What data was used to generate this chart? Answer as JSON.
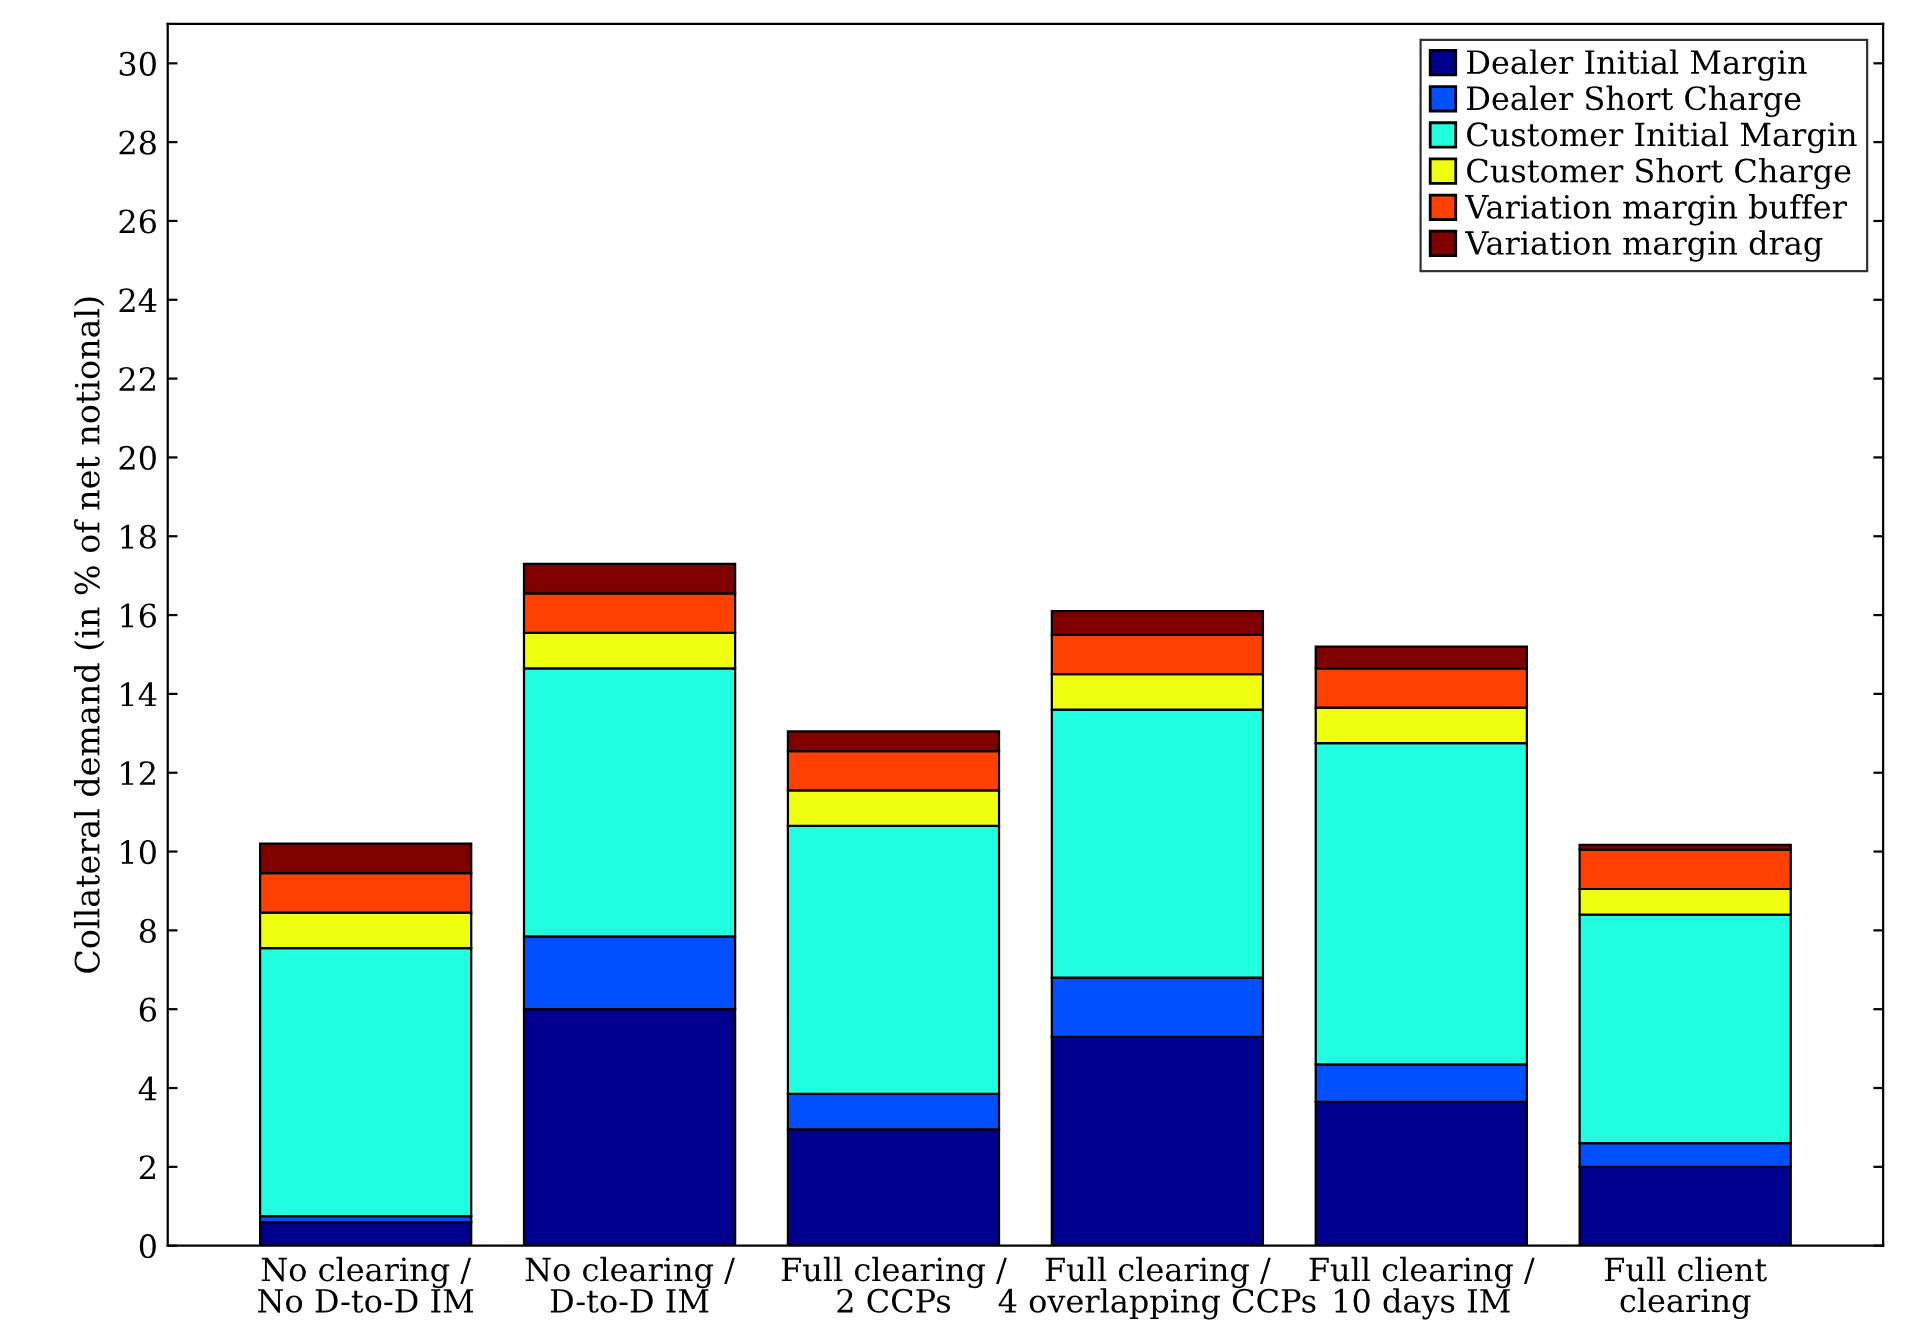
{
  "chart_data": {
    "type": "bar",
    "stacked": true,
    "ylabel": "Collateral demand (in % of net notional)",
    "categories": [
      "No clearing /\nNo D-to-D IM",
      "No clearing /\nD-to-D IM",
      "Full clearing /\n2 CCPs",
      "Full clearing /\n4 overlapping CCPs",
      "Full clearing /\n10 days IM",
      "Full client\nclearing"
    ],
    "series": [
      {
        "name": "Dealer Initial Margin",
        "color": "#00008f",
        "values": [
          0.6,
          6.0,
          2.95,
          5.3,
          3.65,
          2.0
        ]
      },
      {
        "name": "Dealer Short Charge",
        "color": "#0050ff",
        "values": [
          0.15,
          1.85,
          0.9,
          1.5,
          0.95,
          0.6
        ]
      },
      {
        "name": "Customer Initial Margin",
        "color": "#20ffdf",
        "values": [
          6.8,
          6.8,
          6.8,
          6.8,
          8.15,
          5.8
        ]
      },
      {
        "name": "Customer Short Charge",
        "color": "#efff10",
        "values": [
          0.9,
          0.9,
          0.9,
          0.9,
          0.9,
          0.65
        ]
      },
      {
        "name": "Variation margin buffer",
        "color": "#ff4000",
        "values": [
          1.0,
          1.0,
          1.0,
          1.0,
          1.0,
          1.0
        ]
      },
      {
        "name": "Variation margin drag",
        "color": "#800000",
        "values": [
          0.75,
          0.75,
          0.5,
          0.6,
          0.55,
          0.12
        ]
      }
    ],
    "ylim": [
      0,
      31
    ],
    "yticks": [
      0,
      2,
      4,
      6,
      8,
      10,
      12,
      14,
      16,
      18,
      20,
      22,
      24,
      26,
      28,
      30
    ],
    "legend": "top right",
    "grid": false
  }
}
